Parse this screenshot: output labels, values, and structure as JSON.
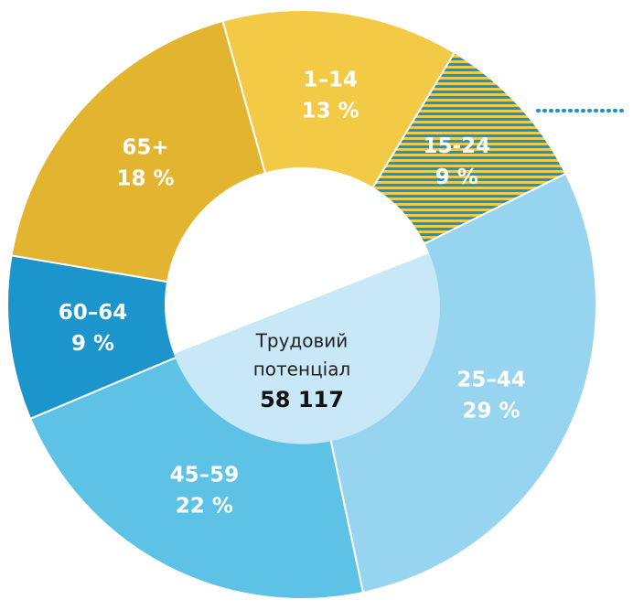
{
  "chart_data": {
    "type": "donut",
    "categories": [
      "1–14",
      "15-24",
      "25–44",
      "45–59",
      "60–64",
      "65+"
    ],
    "values": [
      13,
      9,
      29,
      22,
      9,
      18
    ],
    "value_labels": [
      "13 %",
      "9 %",
      "29 %",
      "22 %",
      "9 %",
      "18 %"
    ],
    "colors": [
      "#f3ca45",
      "#1b95cc",
      "#97d4ef",
      "#5dc2e6",
      "#1b95cc",
      "#e2b430"
    ],
    "hatched": [
      false,
      true,
      false,
      false,
      false,
      false
    ],
    "hatch_color": "#f3ca45",
    "center_label_lines": [
      "Трудовий",
      "потенціал"
    ],
    "center_value": "58 117"
  }
}
